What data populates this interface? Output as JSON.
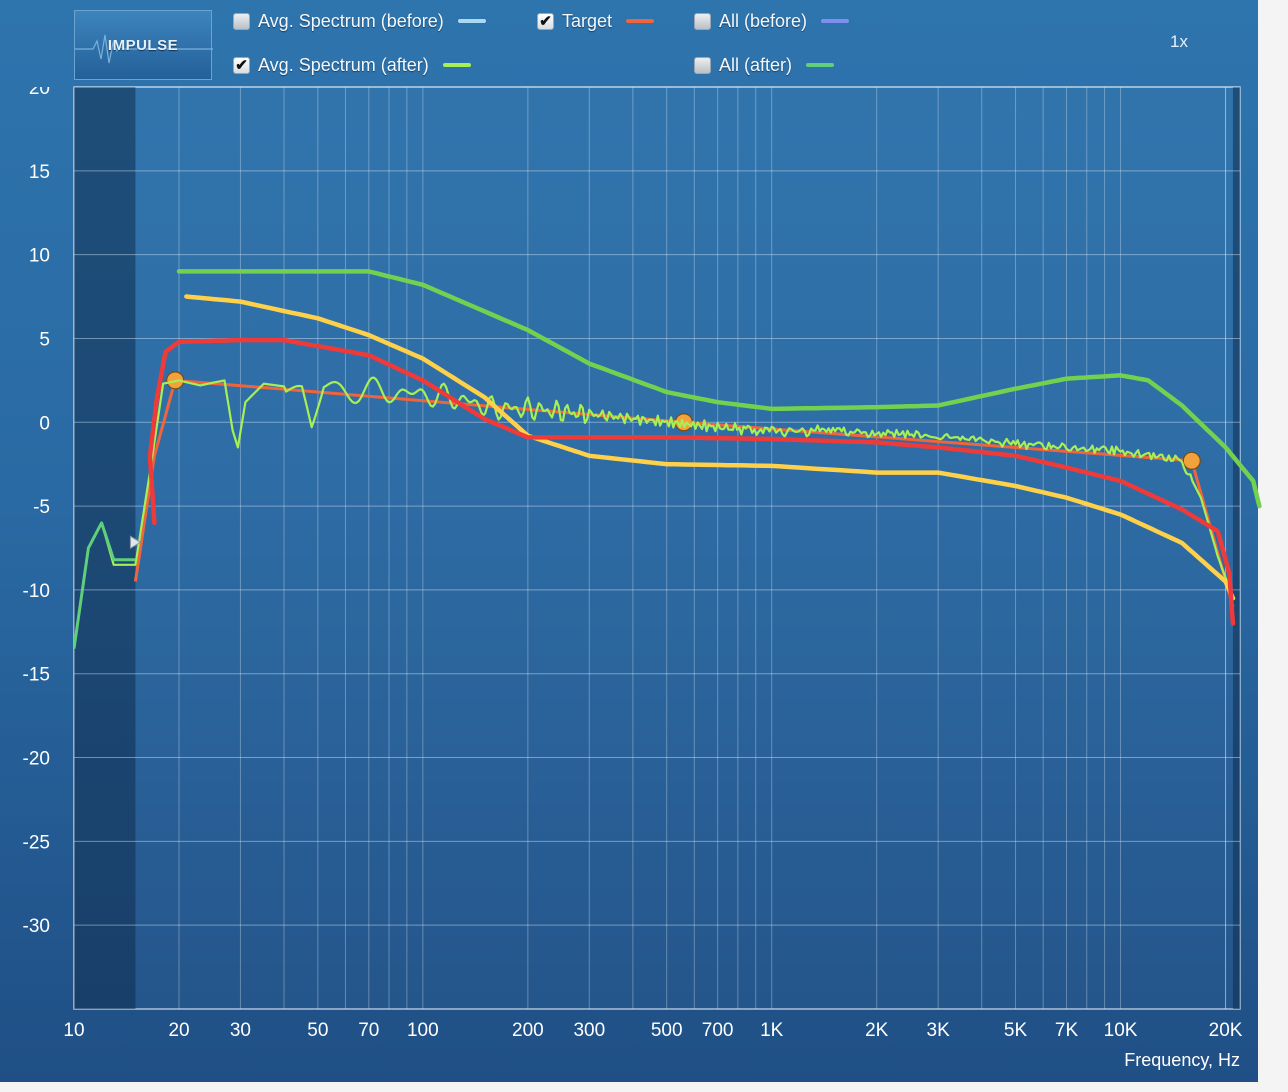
{
  "app": {
    "impulse_button": "IMPULSE",
    "zoom": "1x"
  },
  "legend": [
    {
      "label": "Avg. Spectrum (before)",
      "checked": false,
      "color": "#a9d9f2"
    },
    {
      "label": "Target",
      "checked": true,
      "color": "#f0643c"
    },
    {
      "label": "All (before)",
      "checked": false,
      "color": "#7f8ff0"
    },
    {
      "label": "Avg. Spectrum (after)",
      "checked": true,
      "color": "#a6ef55"
    },
    {
      "label": "All (after)",
      "checked": false,
      "color": "#5fcf7c"
    }
  ],
  "chart_data": {
    "type": "line",
    "x_scale": "log",
    "xlim": [
      10,
      22000
    ],
    "ylim": [
      -35,
      20
    ],
    "xlabel": "Frequency, Hz",
    "ylabel": "",
    "grid": true,
    "x_ticks": [
      {
        "value": 10,
        "label": "10"
      },
      {
        "value": 20,
        "label": "20"
      },
      {
        "value": 30,
        "label": "30"
      },
      {
        "value": 50,
        "label": "50"
      },
      {
        "value": 70,
        "label": "70"
      },
      {
        "value": 100,
        "label": "100"
      },
      {
        "value": 200,
        "label": "200"
      },
      {
        "value": 300,
        "label": "300"
      },
      {
        "value": 500,
        "label": "500"
      },
      {
        "value": 700,
        "label": "700"
      },
      {
        "value": 1000,
        "label": "1K"
      },
      {
        "value": 2000,
        "label": "2K"
      },
      {
        "value": 3000,
        "label": "3K"
      },
      {
        "value": 5000,
        "label": "5K"
      },
      {
        "value": 7000,
        "label": "7K"
      },
      {
        "value": 10000,
        "label": "10K"
      },
      {
        "value": 20000,
        "label": "20K"
      }
    ],
    "y_ticks": [
      {
        "value": 20,
        "label": "20"
      },
      {
        "value": 15,
        "label": "15"
      },
      {
        "value": 10,
        "label": "10"
      },
      {
        "value": 5,
        "label": "5"
      },
      {
        "value": 0,
        "label": "0"
      },
      {
        "value": -5,
        "label": "-5"
      },
      {
        "value": -10,
        "label": "-10"
      },
      {
        "value": -15,
        "label": "-15"
      },
      {
        "value": -20,
        "label": "-20"
      },
      {
        "value": -25,
        "label": "-25"
      },
      {
        "value": -30,
        "label": "-30"
      }
    ],
    "excluded_region_hz": [
      10,
      15
    ],
    "series": [
      {
        "name": "Target",
        "color": "#f0643c",
        "points": [
          [
            15,
            -9.5
          ],
          [
            17,
            -2
          ],
          [
            19.5,
            2.5
          ],
          [
            560,
            0
          ],
          [
            16000,
            -2.3
          ],
          [
            21000,
            -11
          ]
        ],
        "handles_hz": [
          19.5,
          560,
          16000
        ]
      },
      {
        "name": "Avg. Spectrum (after)",
        "color": "#a6ef55",
        "noise": true,
        "points": [
          [
            10,
            -13.5
          ],
          [
            11,
            -7.5
          ],
          [
            12,
            -6
          ],
          [
            13,
            -8.5
          ],
          [
            14,
            -8.5
          ],
          [
            15,
            -8.5
          ],
          [
            16.5,
            -3
          ],
          [
            18,
            2.3
          ],
          [
            20,
            2.5
          ],
          [
            23,
            2.2
          ],
          [
            27,
            2.5
          ],
          [
            28.5,
            -0.5
          ],
          [
            29.5,
            -1.5
          ],
          [
            31,
            1.2
          ],
          [
            35,
            2.3
          ],
          [
            45,
            2
          ],
          [
            48,
            -0.3
          ],
          [
            52,
            2
          ],
          [
            80,
            1.8
          ],
          [
            120,
            1.5
          ],
          [
            160,
            0.8
          ],
          [
            200,
            0.8
          ],
          [
            300,
            0.5
          ],
          [
            500,
            0
          ],
          [
            700,
            -0.3
          ],
          [
            1000,
            -0.5
          ],
          [
            2000,
            -0.6
          ],
          [
            3000,
            -0.8
          ],
          [
            5000,
            -1.3
          ],
          [
            7000,
            -1.5
          ],
          [
            10000,
            -1.7
          ],
          [
            15000,
            -2.3
          ],
          [
            17000,
            -4.5
          ],
          [
            19000,
            -8
          ],
          [
            21000,
            -10.5
          ]
        ]
      },
      {
        "name": "All (after)",
        "color": "#5fcf7c",
        "points": [
          [
            10,
            -13.5
          ],
          [
            11,
            -7.5
          ],
          [
            12,
            -6
          ],
          [
            13,
            -8.2
          ],
          [
            14,
            -8.2
          ],
          [
            15,
            -8.2
          ]
        ]
      }
    ],
    "annotations": [
      {
        "color": "#72d14e",
        "points": [
          [
            20,
            9
          ],
          [
            40,
            9
          ],
          [
            70,
            9
          ],
          [
            100,
            8.2
          ],
          [
            200,
            5.5
          ],
          [
            300,
            3.5
          ],
          [
            500,
            1.8
          ],
          [
            700,
            1.2
          ],
          [
            1000,
            0.8
          ],
          [
            2000,
            0.9
          ],
          [
            3000,
            1.0
          ],
          [
            5000,
            2.0
          ],
          [
            7000,
            2.6
          ],
          [
            10000,
            2.8
          ],
          [
            12000,
            2.5
          ],
          [
            15000,
            1.0
          ],
          [
            20000,
            -1.5
          ],
          [
            24000,
            -3.5
          ],
          [
            25000,
            -5
          ]
        ]
      },
      {
        "color": "#ffd04a",
        "points": [
          [
            21,
            7.5
          ],
          [
            30,
            7.2
          ],
          [
            50,
            6.2
          ],
          [
            70,
            5.2
          ],
          [
            100,
            3.8
          ],
          [
            150,
            1.5
          ],
          [
            200,
            -0.8
          ],
          [
            300,
            -2.0
          ],
          [
            500,
            -2.5
          ],
          [
            1000,
            -2.6
          ],
          [
            2000,
            -3
          ],
          [
            3000,
            -3
          ],
          [
            5000,
            -3.8
          ],
          [
            7000,
            -4.5
          ],
          [
            10000,
            -5.5
          ],
          [
            15000,
            -7.2
          ],
          [
            20000,
            -9.5
          ],
          [
            21000,
            -10.5
          ]
        ]
      },
      {
        "color": "#ef3a3a",
        "points": [
          [
            17,
            -6
          ],
          [
            16.5,
            -2
          ],
          [
            17.3,
            1.5
          ],
          [
            18.3,
            4.2
          ],
          [
            20,
            4.8
          ],
          [
            30,
            4.9
          ],
          [
            40,
            4.9
          ],
          [
            70,
            4.0
          ],
          [
            100,
            2.5
          ],
          [
            150,
            0.2
          ],
          [
            200,
            -0.9
          ],
          [
            500,
            -0.9
          ],
          [
            1000,
            -1.0
          ],
          [
            2000,
            -1.2
          ],
          [
            3000,
            -1.5
          ],
          [
            5000,
            -2.0
          ],
          [
            7000,
            -2.7
          ],
          [
            10000,
            -3.5
          ],
          [
            15000,
            -5.2
          ],
          [
            19000,
            -6.5
          ],
          [
            20500,
            -9
          ],
          [
            21000,
            -12
          ]
        ]
      }
    ]
  }
}
